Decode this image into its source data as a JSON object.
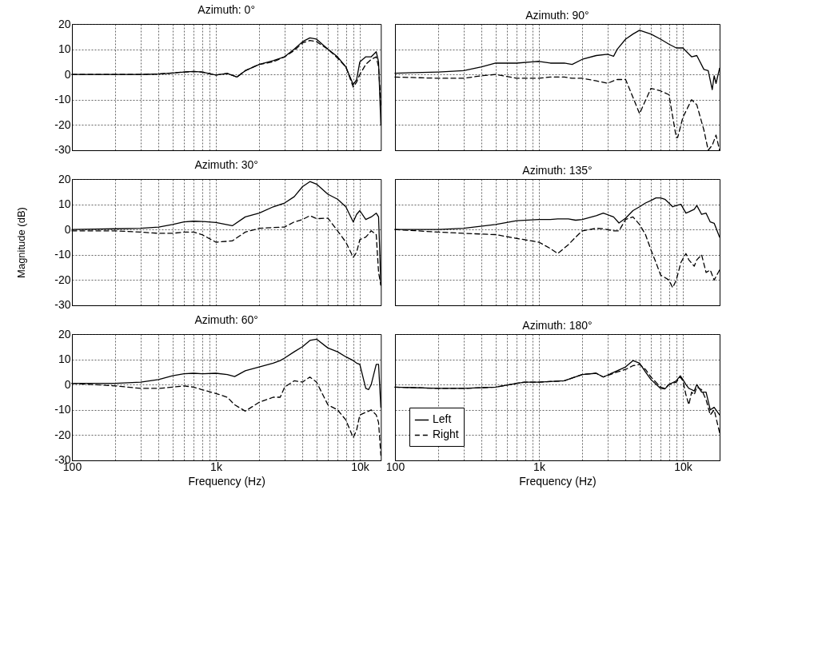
{
  "chart_data": [
    {
      "type": "line",
      "title": "Azimuth: 0°",
      "x": [
        100,
        200,
        300,
        400,
        500,
        600,
        700,
        800,
        1000,
        1200,
        1400,
        1600,
        2000,
        2500,
        3000,
        3500,
        4000,
        4500,
        5000,
        6000,
        7000,
        8000,
        9000,
        9500,
        10000,
        11000,
        12000,
        13000,
        13500,
        14000
      ],
      "series": [
        {
          "color": "#000000",
          "line_style": "solid",
          "values": [
            0,
            0,
            0,
            0.2,
            0.6,
            1,
            1.2,
            1,
            -0.2,
            0.4,
            -1,
            1.5,
            4,
            5.5,
            7,
            10,
            13,
            14.5,
            14,
            10,
            7,
            3,
            -4,
            -2,
            5,
            7,
            7,
            9,
            5,
            -20
          ]
        },
        {
          "color": "#000000",
          "line_style": "dashed",
          "values": [
            0,
            0,
            0,
            0.2,
            0.6,
            1,
            1.2,
            1,
            -0.2,
            0.4,
            -1,
            1.5,
            4,
            5,
            7,
            9.5,
            12.5,
            13.5,
            13,
            10,
            6.5,
            3,
            -5,
            -3,
            0,
            4,
            6,
            7,
            3,
            -12
          ]
        }
      ],
      "xlim": [
        100,
        14000
      ],
      "ylim": [
        -30,
        20
      ],
      "xticks": [
        {
          "value": 100,
          "label": null
        },
        {
          "value": 200,
          "label": null
        },
        {
          "value": 300,
          "label": null
        },
        {
          "value": 400,
          "label": null
        },
        {
          "value": 500,
          "label": null
        },
        {
          "value": 600,
          "label": null
        },
        {
          "value": 700,
          "label": null
        },
        {
          "value": 800,
          "label": null
        },
        {
          "value": 900,
          "label": null
        },
        {
          "value": 1000,
          "label": null
        },
        {
          "value": 2000,
          "label": null
        },
        {
          "value": 3000,
          "label": null
        },
        {
          "value": 4000,
          "label": null
        },
        {
          "value": 5000,
          "label": null
        },
        {
          "value": 6000,
          "label": null
        },
        {
          "value": 7000,
          "label": null
        },
        {
          "value": 8000,
          "label": null
        },
        {
          "value": 9000,
          "label": null
        },
        {
          "value": 10000,
          "label": null
        }
      ],
      "yticks": [
        -30,
        -20,
        -10,
        0,
        10,
        20
      ],
      "log": "x",
      "grid": true,
      "tick_labels": "y"
    },
    {
      "type": "line",
      "title": "Azimuth: 30°",
      "ylabel": "Magnitude (dB)",
      "x": [
        100,
        200,
        300,
        400,
        500,
        600,
        700,
        800,
        1000,
        1300,
        1600,
        2000,
        2500,
        3000,
        3500,
        4000,
        4500,
        5000,
        6000,
        7000,
        8000,
        9000,
        9500,
        10000,
        11000,
        12000,
        13000,
        13500,
        14000
      ],
      "series": [
        {
          "color": "#000000",
          "line_style": "solid",
          "values": [
            0,
            0.3,
            0.5,
            1,
            2,
            3,
            3.3,
            3.2,
            2.8,
            1.5,
            5,
            6.5,
            9,
            10.5,
            13,
            17,
            19,
            18,
            14,
            12,
            9,
            3,
            6,
            7.5,
            4,
            5,
            6.5,
            5,
            -22
          ]
        },
        {
          "color": "#000000",
          "line_style": "dashed",
          "values": [
            -0.5,
            -0.5,
            -1,
            -1.5,
            -1.5,
            -1,
            -1,
            -2,
            -5,
            -4.5,
            -1,
            0.5,
            0.8,
            1,
            3,
            4,
            5.5,
            4.3,
            4.5,
            -0.5,
            -5,
            -11,
            -9,
            -4,
            -3,
            -0.5,
            -2,
            -17,
            -22
          ]
        }
      ],
      "xlim": [
        100,
        14000
      ],
      "ylim": [
        -30,
        20
      ],
      "xticks": [
        {
          "value": 100,
          "label": null
        },
        {
          "value": 200,
          "label": null
        },
        {
          "value": 300,
          "label": null
        },
        {
          "value": 400,
          "label": null
        },
        {
          "value": 500,
          "label": null
        },
        {
          "value": 600,
          "label": null
        },
        {
          "value": 700,
          "label": null
        },
        {
          "value": 800,
          "label": null
        },
        {
          "value": 900,
          "label": null
        },
        {
          "value": 1000,
          "label": null
        },
        {
          "value": 2000,
          "label": null
        },
        {
          "value": 3000,
          "label": null
        },
        {
          "value": 4000,
          "label": null
        },
        {
          "value": 5000,
          "label": null
        },
        {
          "value": 6000,
          "label": null
        },
        {
          "value": 7000,
          "label": null
        },
        {
          "value": 8000,
          "label": null
        },
        {
          "value": 9000,
          "label": null
        },
        {
          "value": 10000,
          "label": null
        }
      ],
      "yticks": [
        -30,
        -20,
        -10,
        0,
        10,
        20
      ],
      "log": "x",
      "grid": true,
      "tick_labels": "y"
    },
    {
      "type": "line",
      "title": "Azimuth: 60°",
      "xlabel": "Frequency (Hz)",
      "x": [
        100,
        200,
        300,
        400,
        500,
        600,
        700,
        800,
        1000,
        1200,
        1350,
        1600,
        2000,
        2500,
        2800,
        3000,
        3500,
        4000,
        4500,
        5000,
        6000,
        7000,
        8000,
        9000,
        9500,
        10000,
        11000,
        11500,
        12000,
        13000,
        13500,
        14000
      ],
      "series": [
        {
          "color": "#000000",
          "line_style": "solid",
          "values": [
            0.5,
            0.5,
            1,
            2,
            3.5,
            4.3,
            4.5,
            4.3,
            4.5,
            4,
            3.2,
            5.5,
            7,
            8.5,
            9.5,
            10.5,
            13,
            15,
            17.5,
            18,
            14.5,
            13,
            11,
            9.5,
            8.5,
            8,
            -1.5,
            -2,
            0,
            8,
            8,
            -9
          ]
        },
        {
          "color": "#000000",
          "line_style": "dashed",
          "values": [
            0.5,
            -0.5,
            -1.5,
            -1.5,
            -1,
            -0.5,
            -1,
            -2,
            -3.5,
            -5,
            -8,
            -10.5,
            -7,
            -5,
            -5,
            -1,
            1.5,
            1,
            3,
            1,
            -8,
            -10,
            -14,
            -21,
            -18,
            -12,
            -11,
            -10.5,
            -10,
            -12,
            -15,
            -28
          ]
        }
      ],
      "xlim": [
        100,
        14000
      ],
      "ylim": [
        -30,
        20
      ],
      "xticks": [
        100,
        {
          "value": 200,
          "label": null
        },
        {
          "value": 300,
          "label": null
        },
        {
          "value": 400,
          "label": null
        },
        {
          "value": 500,
          "label": null
        },
        {
          "value": 600,
          "label": null
        },
        {
          "value": 700,
          "label": null
        },
        {
          "value": 800,
          "label": null
        },
        {
          "value": 900,
          "label": null
        },
        {
          "value": 1000,
          "label": "1k"
        },
        {
          "value": 2000,
          "label": null
        },
        {
          "value": 3000,
          "label": null
        },
        {
          "value": 4000,
          "label": null
        },
        {
          "value": 5000,
          "label": null
        },
        {
          "value": 6000,
          "label": null
        },
        {
          "value": 7000,
          "label": null
        },
        {
          "value": 8000,
          "label": null
        },
        {
          "value": 9000,
          "label": null
        },
        {
          "value": 10000,
          "label": "10k"
        }
      ],
      "yticks": [
        -30,
        -20,
        -10,
        0,
        10,
        20
      ],
      "log": "x",
      "grid": true
    },
    {
      "type": "line",
      "title": "Azimuth: 90°",
      "x": [
        100,
        200,
        300,
        400,
        500,
        700,
        900,
        1000,
        1200,
        1500,
        1700,
        2000,
        2500,
        3000,
        3300,
        3500,
        4000,
        4500,
        5000,
        6000,
        7000,
        8000,
        9000,
        9200,
        10000,
        11500,
        12500,
        14000,
        15000,
        16000,
        16500,
        17000,
        18000
      ],
      "series": [
        {
          "color": "#000000",
          "line_style": "solid",
          "values": [
            0.5,
            1,
            1.5,
            3,
            4.5,
            4.5,
            5,
            5.2,
            4.5,
            4.5,
            4,
            6,
            7.5,
            8,
            7.2,
            10,
            14,
            16,
            17.5,
            16,
            14,
            12,
            10.5,
            10.5,
            10.5,
            7,
            7.5,
            2,
            1.5,
            -6,
            -0.5,
            -3.5,
            2.5
          ]
        },
        {
          "color": "#000000",
          "line_style": "dashed",
          "values": [
            -1,
            -1.5,
            -1.5,
            -0.5,
            0,
            -1.5,
            -1.5,
            -1.5,
            -1,
            -1,
            -1.5,
            -1.5,
            -2.5,
            -3.5,
            -2.5,
            -2,
            -2,
            -9,
            -15.5,
            -5.5,
            -6.5,
            -8,
            -25,
            -25,
            -17,
            -10,
            -12,
            -22,
            -30,
            -28,
            -26,
            -24,
            -30
          ]
        }
      ],
      "xlim": [
        100,
        18000
      ],
      "ylim": [
        -30,
        20
      ],
      "xticks": [
        {
          "value": 100,
          "label": null
        },
        {
          "value": 200,
          "label": null
        },
        {
          "value": 300,
          "label": null
        },
        {
          "value": 400,
          "label": null
        },
        {
          "value": 500,
          "label": null
        },
        {
          "value": 600,
          "label": null
        },
        {
          "value": 700,
          "label": null
        },
        {
          "value": 800,
          "label": null
        },
        {
          "value": 900,
          "label": null
        },
        {
          "value": 1000,
          "label": null
        },
        {
          "value": 2000,
          "label": null
        },
        {
          "value": 3000,
          "label": null
        },
        {
          "value": 4000,
          "label": null
        },
        {
          "value": 5000,
          "label": null
        },
        {
          "value": 6000,
          "label": null
        },
        {
          "value": 7000,
          "label": null
        },
        {
          "value": 8000,
          "label": null
        },
        {
          "value": 9000,
          "label": null
        },
        {
          "value": 10000,
          "label": null
        }
      ],
      "yticks": [
        {
          "value": -30,
          "label": null
        },
        {
          "value": -20,
          "label": null
        },
        {
          "value": -10,
          "label": null
        },
        {
          "value": 0,
          "label": null
        },
        {
          "value": 10,
          "label": null
        },
        {
          "value": 20,
          "label": null
        }
      ],
      "log": "x",
      "grid": true,
      "tick_labels": false
    },
    {
      "type": "line",
      "title": "Azimuth: 135°",
      "x": [
        100,
        200,
        300,
        500,
        700,
        1000,
        1200,
        1350,
        1600,
        1800,
        2000,
        2500,
        2800,
        3300,
        3600,
        4000,
        4500,
        5000,
        5500,
        6000,
        6500,
        7000,
        7500,
        8000,
        8500,
        9000,
        9700,
        10500,
        11000,
        12000,
        12500,
        13500,
        14500,
        15500,
        16500,
        18000
      ],
      "series": [
        {
          "color": "#000000",
          "line_style": "solid",
          "values": [
            0,
            0,
            0.5,
            2,
            3.5,
            4,
            4,
            4.2,
            4.2,
            3.7,
            4,
            5.5,
            6.5,
            5,
            2.6,
            4.5,
            7.5,
            9,
            10.5,
            11.5,
            12.5,
            12.5,
            12,
            10.5,
            9,
            9.5,
            10,
            6.5,
            7,
            8,
            9.5,
            6,
            6.5,
            3,
            2.5,
            -3
          ]
        },
        {
          "color": "#000000",
          "line_style": "dashed",
          "values": [
            0,
            -1,
            -1.5,
            -2,
            -3.5,
            -5,
            -7.5,
            -9.5,
            -6,
            -3,
            -0.5,
            0.5,
            0.3,
            -0.5,
            -0.5,
            4,
            5,
            2,
            -2,
            -8,
            -13,
            -18,
            -19,
            -20,
            -23,
            -20,
            -13,
            -9.5,
            -12,
            -14.5,
            -12,
            -10,
            -17,
            -16,
            -20,
            -16
          ]
        }
      ],
      "xlim": [
        100,
        18000
      ],
      "ylim": [
        -30,
        20
      ],
      "xticks": [
        {
          "value": 100,
          "label": null
        },
        {
          "value": 200,
          "label": null
        },
        {
          "value": 300,
          "label": null
        },
        {
          "value": 400,
          "label": null
        },
        {
          "value": 500,
          "label": null
        },
        {
          "value": 600,
          "label": null
        },
        {
          "value": 700,
          "label": null
        },
        {
          "value": 800,
          "label": null
        },
        {
          "value": 900,
          "label": null
        },
        {
          "value": 1000,
          "label": null
        },
        {
          "value": 2000,
          "label": null
        },
        {
          "value": 3000,
          "label": null
        },
        {
          "value": 4000,
          "label": null
        },
        {
          "value": 5000,
          "label": null
        },
        {
          "value": 6000,
          "label": null
        },
        {
          "value": 7000,
          "label": null
        },
        {
          "value": 8000,
          "label": null
        },
        {
          "value": 9000,
          "label": null
        },
        {
          "value": 10000,
          "label": null
        }
      ],
      "yticks": [
        {
          "value": -30,
          "label": null
        },
        {
          "value": -20,
          "label": null
        },
        {
          "value": -10,
          "label": null
        },
        {
          "value": 0,
          "label": null
        },
        {
          "value": 10,
          "label": null
        },
        {
          "value": 20,
          "label": null
        }
      ],
      "log": "x",
      "grid": true,
      "tick_labels": false
    },
    {
      "type": "line",
      "title": "Azimuth: 180°",
      "xlabel": "Frequency (Hz)",
      "x": [
        100,
        200,
        300,
        500,
        700,
        800,
        1000,
        1500,
        2000,
        2500,
        2800,
        3500,
        4000,
        4500,
        5000,
        5500,
        6000,
        7000,
        7500,
        8000,
        9000,
        9600,
        10000,
        10500,
        11000,
        11500,
        12000,
        12500,
        13500,
        14500,
        15500,
        16500,
        18000
      ],
      "series": [
        {
          "name": "Left",
          "color": "#000000",
          "line_style": "solid",
          "values": [
            -1,
            -1.5,
            -1.5,
            -1,
            0.5,
            1,
            1,
            1.5,
            4,
            4.5,
            3,
            5.5,
            7,
            9.5,
            8.5,
            5,
            2,
            -1.5,
            -1.7,
            0,
            1.5,
            3.5,
            2,
            0,
            -1.5,
            -2,
            -2.5,
            0,
            -3,
            -3,
            -10,
            -9,
            -12
          ]
        },
        {
          "name": "Right",
          "color": "#000000",
          "line_style": "dashed",
          "values": [
            -1,
            -1.5,
            -1.5,
            -1,
            0.5,
            1,
            1,
            1.5,
            4,
            4.5,
            3,
            5,
            6,
            7.5,
            8,
            6,
            3,
            -1,
            -1.5,
            0,
            1,
            3,
            1.5,
            -4,
            -8,
            -3,
            -4,
            -1,
            -2,
            -6,
            -12,
            -10,
            -19
          ]
        }
      ],
      "xlim": [
        100,
        18000
      ],
      "ylim": [
        -30,
        20
      ],
      "xticks": [
        100,
        {
          "value": 200,
          "label": null
        },
        {
          "value": 300,
          "label": null
        },
        {
          "value": 400,
          "label": null
        },
        {
          "value": 500,
          "label": null
        },
        {
          "value": 600,
          "label": null
        },
        {
          "value": 700,
          "label": null
        },
        {
          "value": 800,
          "label": null
        },
        {
          "value": 900,
          "label": null
        },
        {
          "value": 1000,
          "label": "1k"
        },
        {
          "value": 2000,
          "label": null
        },
        {
          "value": 3000,
          "label": null
        },
        {
          "value": 4000,
          "label": null
        },
        {
          "value": 5000,
          "label": null
        },
        {
          "value": 6000,
          "label": null
        },
        {
          "value": 7000,
          "label": null
        },
        {
          "value": 8000,
          "label": null
        },
        {
          "value": 9000,
          "label": null
        },
        {
          "value": 10000,
          "label": "10k"
        }
      ],
      "yticks": [
        {
          "value": -30,
          "label": null
        },
        {
          "value": -20,
          "label": null
        },
        {
          "value": -10,
          "label": null
        },
        {
          "value": 0,
          "label": null
        },
        {
          "value": 10,
          "label": null
        },
        {
          "value": 20,
          "label": null
        }
      ],
      "log": "x",
      "grid": true,
      "tick_labels": "x",
      "legend": "bottom left"
    }
  ]
}
